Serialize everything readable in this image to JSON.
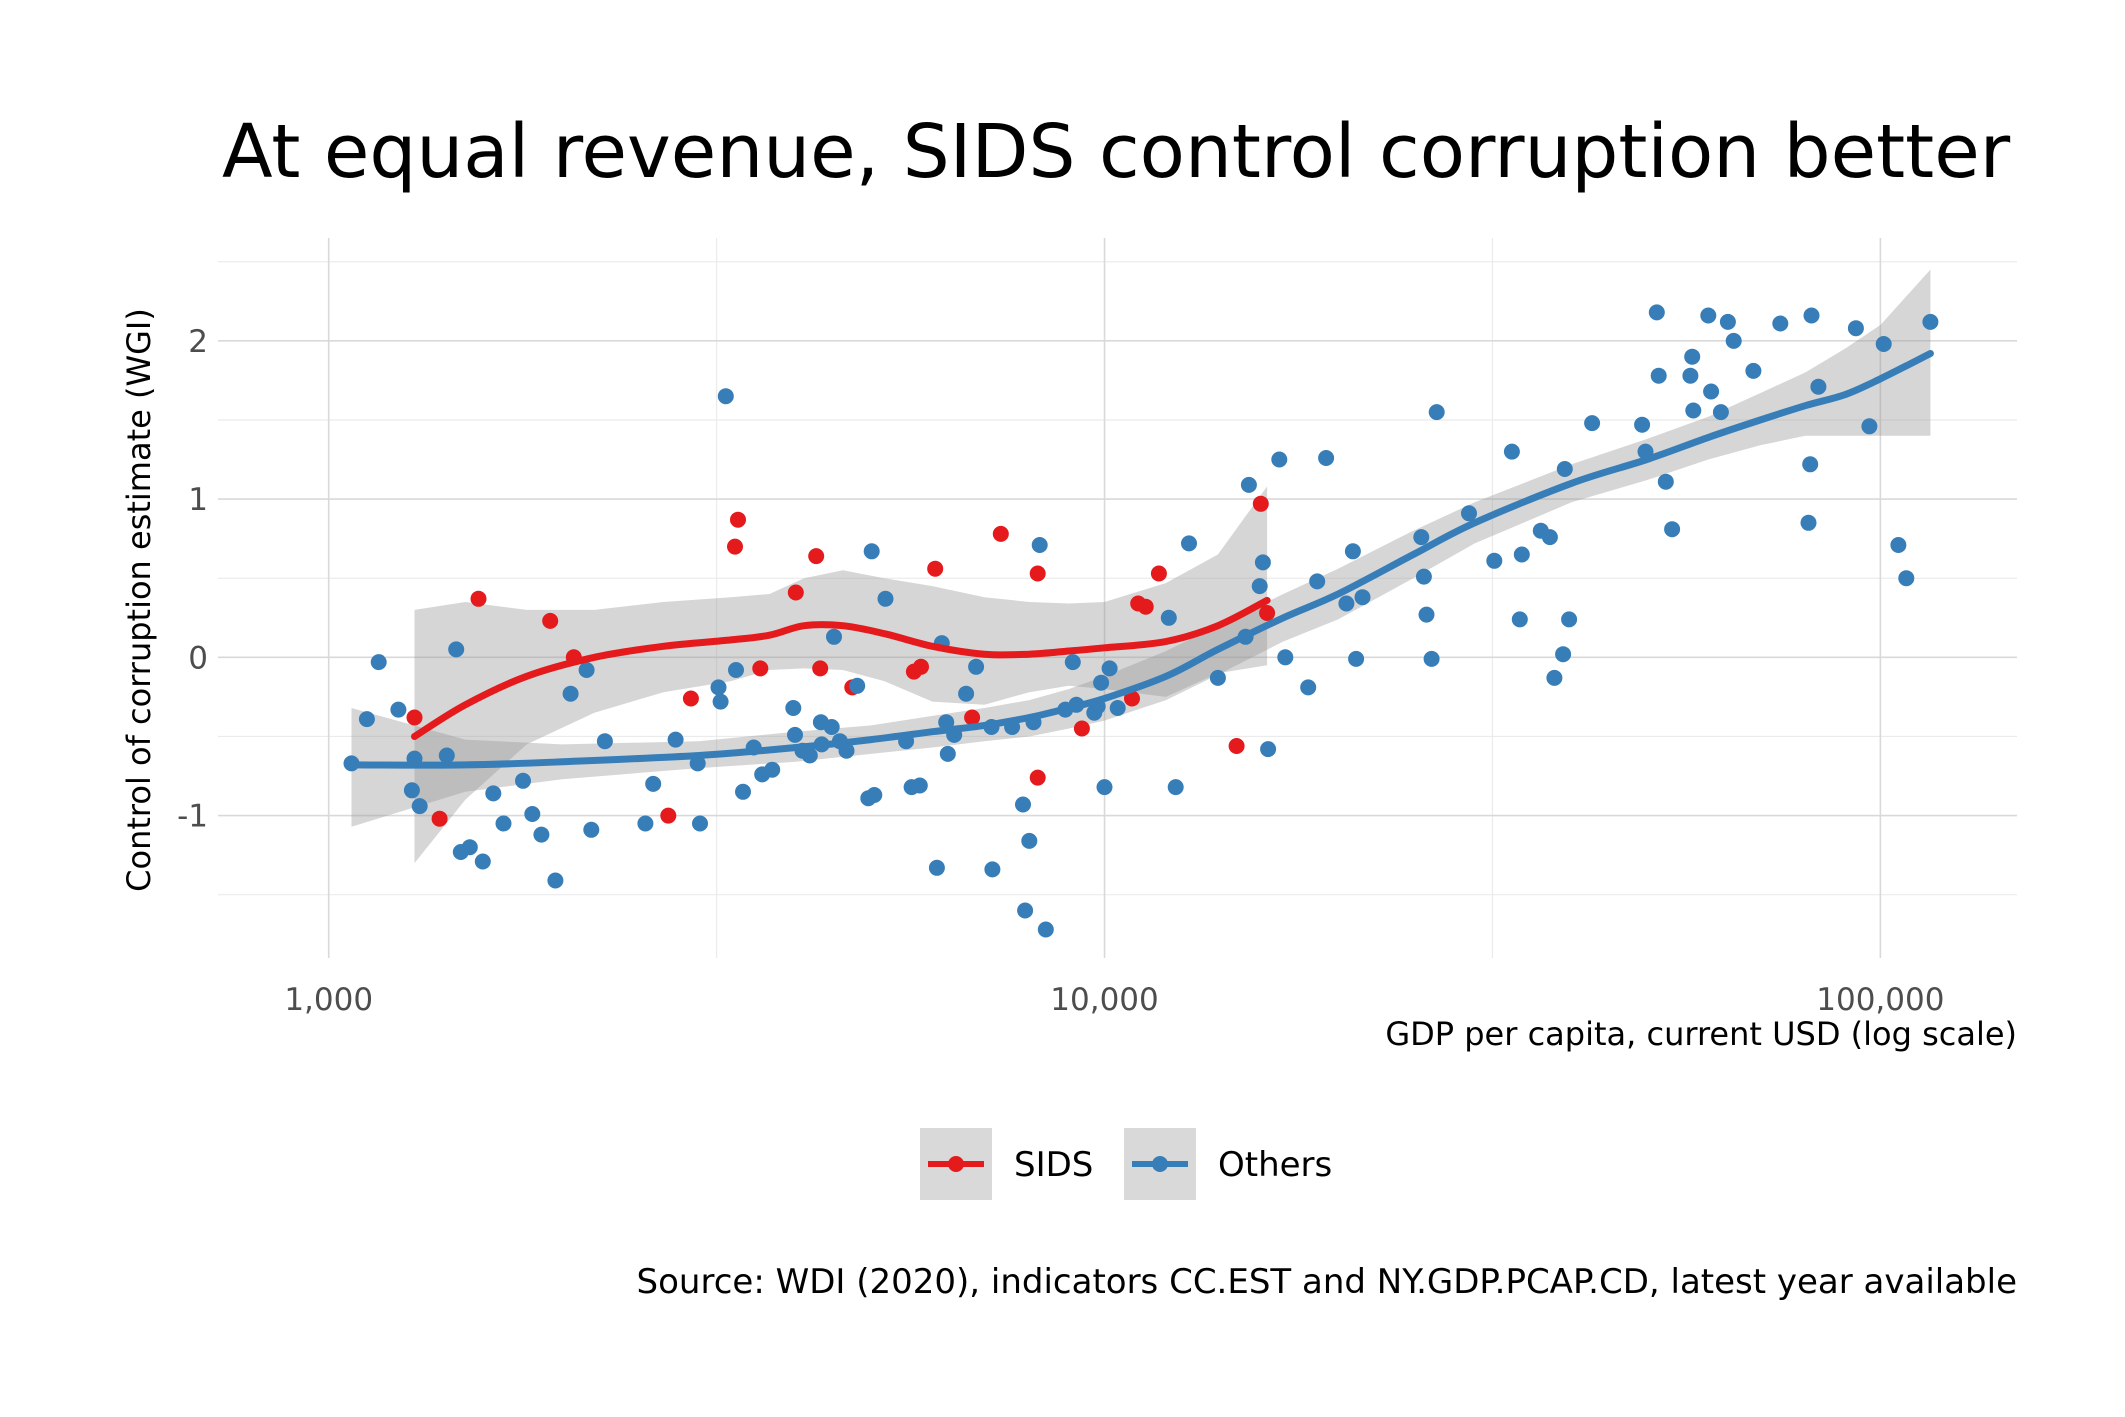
{
  "chart_data": {
    "type": "scatter",
    "title": "At equal revenue, SIDS control corruption better",
    "xlabel": "GDP per capita, current USD (log scale)",
    "ylabel": "Control of corruption estimate (WGI)",
    "caption": "Source: WDI (2020), indicators CC.EST and NY.GDP.PCAP.CD, latest year available",
    "x_scale": "log10",
    "xlim": [
      720,
      150000
    ],
    "ylim": [
      -1.9,
      2.65
    ],
    "x_ticks": [
      {
        "value": 1000,
        "label": "1,000"
      },
      {
        "value": 10000,
        "label": "10,000"
      },
      {
        "value": 100000,
        "label": "100,000"
      }
    ],
    "y_ticks": [
      {
        "value": -1,
        "label": "-1"
      },
      {
        "value": 0,
        "label": "0"
      },
      {
        "value": 1,
        "label": "1"
      },
      {
        "value": 2,
        "label": "2"
      }
    ],
    "grid": true,
    "legend_position": "bottom",
    "series": [
      {
        "name": "SIDS",
        "color": "#E41A1C",
        "points": [
          [
            1290,
            -0.38
          ],
          [
            1390,
            -1.02
          ],
          [
            1560,
            0.37
          ],
          [
            1930,
            0.23
          ],
          [
            2070,
            0
          ],
          [
            2740,
            -1
          ],
          [
            2930,
            -0.26
          ],
          [
            3340,
            0.7
          ],
          [
            3370,
            0.87
          ],
          [
            3600,
            -0.07
          ],
          [
            4000,
            0.41
          ],
          [
            4250,
            0.64
          ],
          [
            4300,
            -0.07
          ],
          [
            4730,
            -0.19
          ],
          [
            5680,
            -0.09
          ],
          [
            5800,
            -0.06
          ],
          [
            6050,
            0.56
          ],
          [
            6750,
            -0.38
          ],
          [
            7350,
            0.78
          ],
          [
            8200,
            -0.76
          ],
          [
            8200,
            0.53
          ],
          [
            9350,
            -0.45
          ],
          [
            10850,
            -0.26
          ],
          [
            11050,
            0.34
          ],
          [
            11300,
            0.32
          ],
          [
            11750,
            0.53
          ],
          [
            14800,
            -0.56
          ],
          [
            15900,
            0.97
          ],
          [
            16200,
            0.28
          ]
        ],
        "smooth": [
          [
            1290,
            -0.5
          ],
          [
            1500,
            -0.3
          ],
          [
            1800,
            -0.12
          ],
          [
            2200,
            0
          ],
          [
            2700,
            0.07
          ],
          [
            3300,
            0.11
          ],
          [
            3700,
            0.14
          ],
          [
            4100,
            0.2
          ],
          [
            4600,
            0.2
          ],
          [
            5200,
            0.15
          ],
          [
            6000,
            0.07
          ],
          [
            7000,
            0.02
          ],
          [
            8000,
            0.02
          ],
          [
            9000,
            0.04
          ],
          [
            10000,
            0.06
          ],
          [
            12000,
            0.1
          ],
          [
            14000,
            0.2
          ],
          [
            16200,
            0.36
          ]
        ],
        "band": [
          [
            1290,
            -1.3,
            0.3
          ],
          [
            1500,
            -0.9,
            0.35
          ],
          [
            1800,
            -0.55,
            0.3
          ],
          [
            2200,
            -0.35,
            0.3
          ],
          [
            2700,
            -0.22,
            0.35
          ],
          [
            3300,
            -0.15,
            0.38
          ],
          [
            3700,
            -0.08,
            0.4
          ],
          [
            4100,
            -0.07,
            0.5
          ],
          [
            4600,
            -0.08,
            0.55
          ],
          [
            5200,
            -0.15,
            0.5
          ],
          [
            6000,
            -0.28,
            0.45
          ],
          [
            7000,
            -0.3,
            0.38
          ],
          [
            8000,
            -0.22,
            0.35
          ],
          [
            9000,
            -0.18,
            0.34
          ],
          [
            10000,
            -0.2,
            0.35
          ],
          [
            12000,
            -0.25,
            0.47
          ],
          [
            14000,
            -0.1,
            0.65
          ],
          [
            16200,
            -0.05,
            1.08
          ]
        ]
      },
      {
        "name": "Others",
        "color": "#377EB8",
        "points": [
          [
            1070,
            -0.67
          ],
          [
            1120,
            -0.39
          ],
          [
            1160,
            -0.03
          ],
          [
            1230,
            -0.33
          ],
          [
            1280,
            -0.84
          ],
          [
            1290,
            -0.64
          ],
          [
            1310,
            -0.94
          ],
          [
            1420,
            -0.62
          ],
          [
            1460,
            0.05
          ],
          [
            1480,
            -1.23
          ],
          [
            1520,
            -1.2
          ],
          [
            1580,
            -1.29
          ],
          [
            1630,
            -0.86
          ],
          [
            1680,
            -1.05
          ],
          [
            1780,
            -0.78
          ],
          [
            1830,
            -0.99
          ],
          [
            1880,
            -1.12
          ],
          [
            1960,
            -1.41
          ],
          [
            2050,
            -0.23
          ],
          [
            2150,
            -0.08
          ],
          [
            2180,
            -1.09
          ],
          [
            2270,
            -0.53
          ],
          [
            2560,
            -1.05
          ],
          [
            2620,
            -0.8
          ],
          [
            2800,
            -0.52
          ],
          [
            2990,
            -0.67
          ],
          [
            3010,
            -1.05
          ],
          [
            3180,
            -0.19
          ],
          [
            3200,
            -0.28
          ],
          [
            3250,
            1.65
          ],
          [
            3350,
            -0.08
          ],
          [
            3420,
            -0.85
          ],
          [
            3530,
            -0.57
          ],
          [
            3620,
            -0.74
          ],
          [
            3730,
            -0.71
          ],
          [
            3970,
            -0.32
          ],
          [
            3990,
            -0.49
          ],
          [
            4080,
            -0.59
          ],
          [
            4170,
            -0.62
          ],
          [
            4310,
            -0.41
          ],
          [
            4320,
            -0.55
          ],
          [
            4450,
            -0.44
          ],
          [
            4480,
            0.13
          ],
          [
            4560,
            -0.53
          ],
          [
            4650,
            -0.59
          ],
          [
            4800,
            -0.18
          ],
          [
            4960,
            -0.89
          ],
          [
            5010,
            0.67
          ],
          [
            5050,
            -0.87
          ],
          [
            5220,
            0.37
          ],
          [
            5550,
            -0.53
          ],
          [
            5640,
            -0.82
          ],
          [
            5780,
            -0.81
          ],
          [
            6080,
            -1.33
          ],
          [
            6170,
            0.09
          ],
          [
            6250,
            -0.41
          ],
          [
            6280,
            -0.61
          ],
          [
            6400,
            -0.49
          ],
          [
            6630,
            -0.23
          ],
          [
            6830,
            -0.06
          ],
          [
            7150,
            -0.44
          ],
          [
            7170,
            -1.34
          ],
          [
            7600,
            -0.44
          ],
          [
            7850,
            -0.93
          ],
          [
            7900,
            -1.6
          ],
          [
            8000,
            -1.16
          ],
          [
            8100,
            -0.41
          ],
          [
            8250,
            0.71
          ],
          [
            8400,
            -1.72
          ],
          [
            8900,
            -0.33
          ],
          [
            9100,
            -0.03
          ],
          [
            9200,
            -0.3
          ],
          [
            9700,
            -0.35
          ],
          [
            9800,
            -0.31
          ],
          [
            9900,
            -0.16
          ],
          [
            10000,
            -0.82
          ],
          [
            10150,
            -0.07
          ],
          [
            10400,
            -0.32
          ],
          [
            12100,
            0.25
          ],
          [
            12350,
            -0.82
          ],
          [
            12850,
            0.72
          ],
          [
            14000,
            -0.13
          ],
          [
            15200,
            0.13
          ],
          [
            15350,
            1.09
          ],
          [
            15850,
            0.45
          ],
          [
            16000,
            0.6
          ],
          [
            16250,
            -0.58
          ],
          [
            16800,
            1.25
          ],
          [
            17100,
            0
          ],
          [
            18300,
            -0.19
          ],
          [
            18800,
            0.48
          ],
          [
            19300,
            1.26
          ],
          [
            20500,
            0.34
          ],
          [
            20900,
            0.67
          ],
          [
            21100,
            -0.01
          ],
          [
            21500,
            0.38
          ],
          [
            25600,
            0.76
          ],
          [
            25800,
            0.51
          ],
          [
            26000,
            0.27
          ],
          [
            26400,
            -0.01
          ],
          [
            26800,
            1.55
          ],
          [
            29500,
            0.91
          ],
          [
            31800,
            0.61
          ],
          [
            33500,
            1.3
          ],
          [
            34300,
            0.24
          ],
          [
            34500,
            0.65
          ],
          [
            36500,
            0.8
          ],
          [
            37500,
            0.76
          ],
          [
            38000,
            -0.13
          ],
          [
            39000,
            0.02
          ],
          [
            39200,
            1.19
          ],
          [
            39700,
            0.24
          ],
          [
            42500,
            1.48
          ],
          [
            49300,
            1.47
          ],
          [
            49800,
            1.3
          ],
          [
            51500,
            2.18
          ],
          [
            51800,
            1.78
          ],
          [
            52900,
            1.11
          ],
          [
            53900,
            0.81
          ],
          [
            56900,
            1.78
          ],
          [
            57200,
            1.9
          ],
          [
            57400,
            1.56
          ],
          [
            60000,
            2.16
          ],
          [
            60500,
            1.68
          ],
          [
            62300,
            1.55
          ],
          [
            63600,
            2.12
          ],
          [
            64700,
            2
          ],
          [
            68600,
            1.81
          ],
          [
            74300,
            2.11
          ],
          [
            80800,
            0.85
          ],
          [
            81200,
            1.22
          ],
          [
            81500,
            2.16
          ],
          [
            83200,
            1.71
          ],
          [
            93000,
            2.08
          ],
          [
            96800,
            1.46
          ],
          [
            101000,
            1.98
          ],
          [
            105500,
            0.71
          ],
          [
            108000,
            0.5
          ],
          [
            116000,
            2.12
          ]
        ],
        "smooth": [
          [
            1070,
            -0.68
          ],
          [
            1500,
            -0.68
          ],
          [
            2000,
            -0.66
          ],
          [
            3000,
            -0.62
          ],
          [
            4000,
            -0.57
          ],
          [
            5000,
            -0.52
          ],
          [
            6000,
            -0.47
          ],
          [
            7000,
            -0.43
          ],
          [
            8000,
            -0.38
          ],
          [
            9000,
            -0.32
          ],
          [
            10000,
            -0.26
          ],
          [
            12000,
            -0.12
          ],
          [
            14000,
            0.05
          ],
          [
            17000,
            0.25
          ],
          [
            20000,
            0.4
          ],
          [
            25000,
            0.65
          ],
          [
            30000,
            0.85
          ],
          [
            40000,
            1.1
          ],
          [
            50000,
            1.25
          ],
          [
            60000,
            1.39
          ],
          [
            70000,
            1.5
          ],
          [
            80000,
            1.59
          ],
          [
            90000,
            1.66
          ],
          [
            100000,
            1.76
          ],
          [
            116000,
            1.92
          ]
        ],
        "band": [
          [
            1070,
            -1.07,
            -0.32
          ],
          [
            1500,
            -0.85,
            -0.52
          ],
          [
            2000,
            -0.77,
            -0.55
          ],
          [
            3000,
            -0.7,
            -0.53
          ],
          [
            4000,
            -0.66,
            -0.47
          ],
          [
            5000,
            -0.61,
            -0.43
          ],
          [
            6000,
            -0.57,
            -0.37
          ],
          [
            7000,
            -0.53,
            -0.32
          ],
          [
            8000,
            -0.5,
            -0.27
          ],
          [
            9000,
            -0.45,
            -0.2
          ],
          [
            10000,
            -0.4,
            -0.12
          ],
          [
            12000,
            -0.27,
            0.04
          ],
          [
            14000,
            -0.11,
            0.2
          ],
          [
            17000,
            0.1,
            0.4
          ],
          [
            20000,
            0.24,
            0.56
          ],
          [
            25000,
            0.5,
            0.8
          ],
          [
            30000,
            0.72,
            0.98
          ],
          [
            40000,
            0.98,
            1.22
          ],
          [
            50000,
            1.12,
            1.38
          ],
          [
            60000,
            1.25,
            1.52
          ],
          [
            70000,
            1.34,
            1.67
          ],
          [
            80000,
            1.4,
            1.8
          ],
          [
            90000,
            1.4,
            1.95
          ],
          [
            100000,
            1.4,
            2.1
          ],
          [
            116000,
            1.4,
            2.45
          ]
        ]
      }
    ]
  }
}
